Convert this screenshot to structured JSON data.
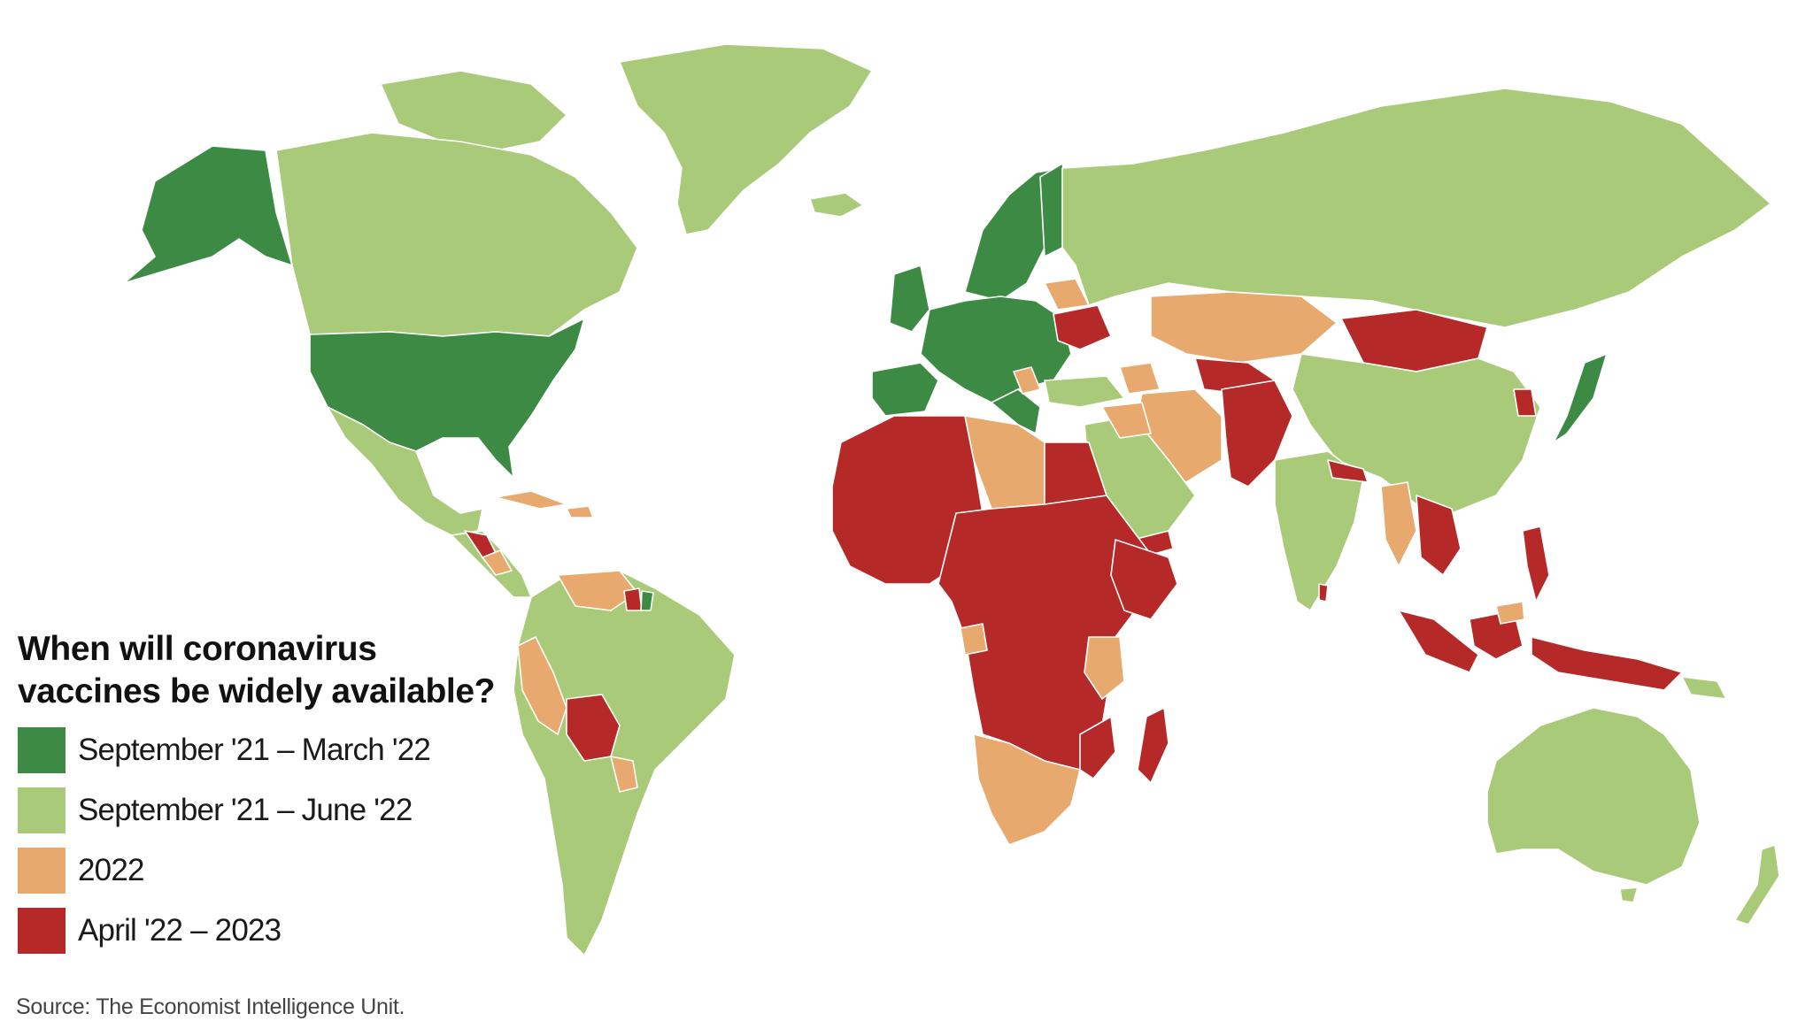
{
  "legend": {
    "title_line1": "When will coronavirus",
    "title_line2": "vaccines be widely available?",
    "items": [
      {
        "label": "September '21 – March '22",
        "color": "#3d8a45"
      },
      {
        "label": "September '21 – June '22",
        "color": "#a9cb79"
      },
      {
        "label": "2022",
        "color": "#e8a96e"
      },
      {
        "label": "April '22 – 2023",
        "color": "#b52a28"
      }
    ]
  },
  "source": "Source: The Economist Intelligence Unit."
}
